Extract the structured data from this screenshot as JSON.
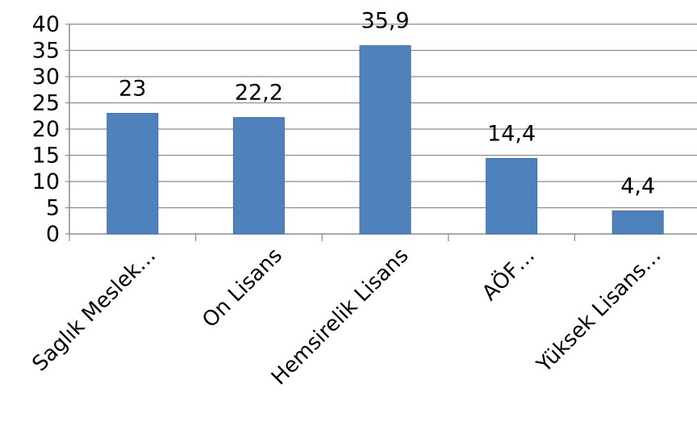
{
  "chart_data": {
    "type": "bar",
    "categories": [
      "Saglık Meslek…",
      "On Lisans",
      "Hemsirelik Lisans",
      "AÖF…",
      "Yüksek Lisans…"
    ],
    "values": [
      23,
      22.2,
      35.9,
      14.4,
      4.4
    ],
    "data_labels": [
      "23",
      "22,2",
      "35,9",
      "14,4",
      "4,4"
    ],
    "title": "",
    "xlabel": "",
    "ylabel": "",
    "ylim": [
      0,
      40
    ],
    "yticks": [
      0,
      5,
      10,
      15,
      20,
      25,
      30,
      35,
      40
    ],
    "ytick_labels": [
      "0",
      "5",
      "10",
      "15",
      "20",
      "25",
      "30",
      "35",
      "40"
    ],
    "grid": true,
    "legend": "none",
    "bar_color": "#4f81bd",
    "bar_edge_color": "#3c6ea8",
    "grid_color": "#8c8c8c",
    "axis_color": "#8c8c8c"
  }
}
